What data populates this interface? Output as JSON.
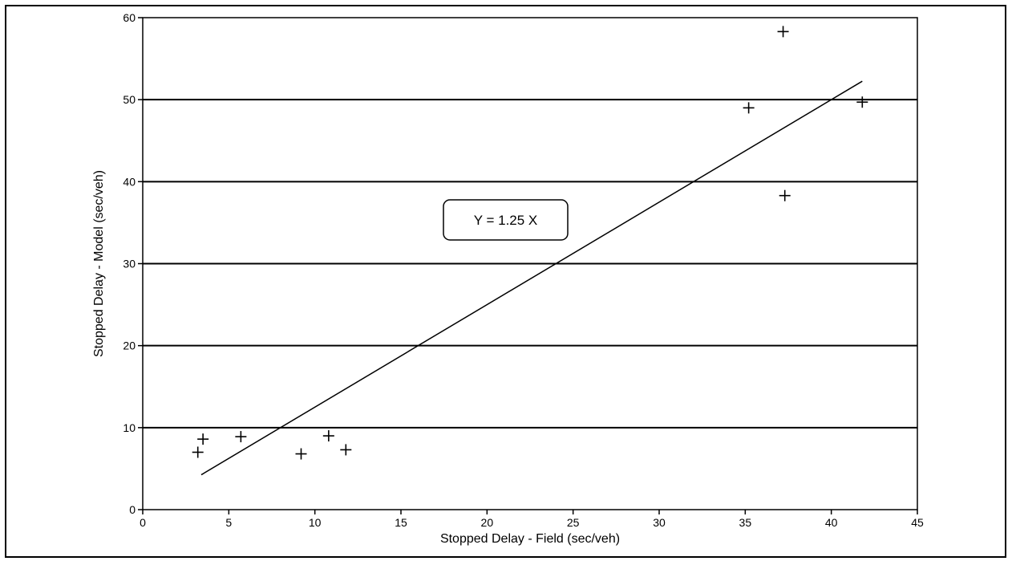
{
  "chart_data": {
    "type": "scatter",
    "title": "",
    "xlabel": "Stopped Delay - Field (sec/veh)",
    "ylabel": "Stopped Delay - Model (sec/veh)",
    "xlim": [
      0,
      45
    ],
    "ylim": [
      0,
      60
    ],
    "x_ticks": [
      0,
      5,
      10,
      15,
      20,
      25,
      30,
      35,
      40,
      45
    ],
    "y_ticks": [
      0,
      10,
      20,
      30,
      40,
      50,
      60
    ],
    "grid": "horizontal",
    "series": [
      {
        "marker": "+",
        "points": [
          {
            "x": 3.2,
            "y": 7.0
          },
          {
            "x": 3.5,
            "y": 8.6
          },
          {
            "x": 5.7,
            "y": 8.9
          },
          {
            "x": 9.2,
            "y": 6.8
          },
          {
            "x": 10.8,
            "y": 9.0
          },
          {
            "x": 11.8,
            "y": 7.3
          },
          {
            "x": 35.2,
            "y": 49.0
          },
          {
            "x": 37.2,
            "y": 58.3
          },
          {
            "x": 37.3,
            "y": 38.3
          },
          {
            "x": 41.8,
            "y": 49.7
          }
        ]
      }
    ],
    "fit_line": {
      "label": "Y = 1.25 X",
      "slope": 1.25,
      "x_range": [
        3.4,
        41.8
      ]
    }
  }
}
